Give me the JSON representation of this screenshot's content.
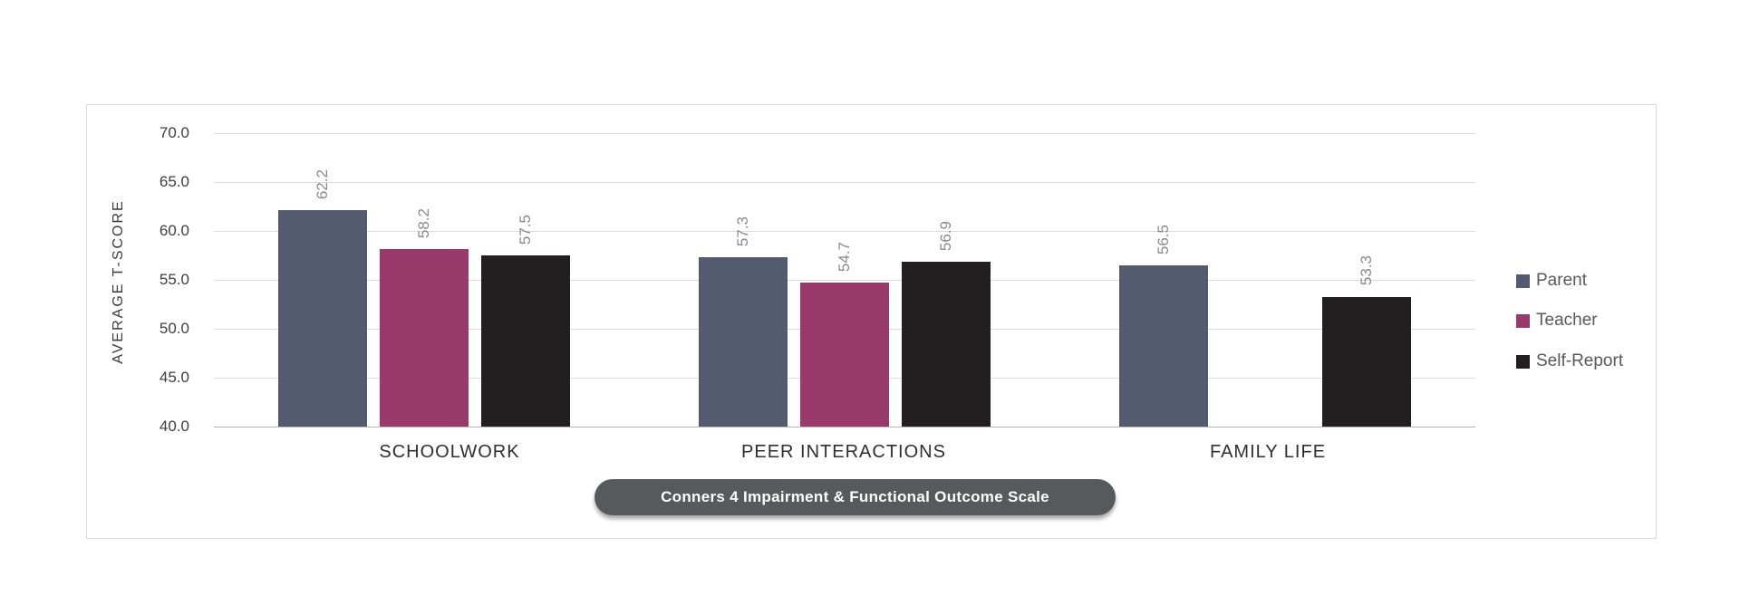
{
  "chart_data": {
    "type": "bar",
    "title": "Conners 4 Impairment & Functional Outcome Scale",
    "ylabel": "AVERAGE T-SCORE",
    "xlabel": "",
    "categories": [
      "SCHOOLWORK",
      "PEER INTERACTIONS",
      "FAMILY LIFE"
    ],
    "series": [
      {
        "name": "Parent",
        "color": "#555b6e",
        "values": [
          62.2,
          57.3,
          56.5
        ]
      },
      {
        "name": "Teacher",
        "color": "#9a3a6b",
        "values": [
          58.2,
          54.7,
          null
        ]
      },
      {
        "name": "Self-Report",
        "color": "#231f20",
        "values": [
          57.5,
          56.9,
          53.3
        ]
      }
    ],
    "ylim": [
      40.0,
      70.0
    ],
    "y_tick_labels": [
      "70.0",
      "65.0",
      "60.0",
      "55.0",
      "50.0",
      "45.0",
      "40.0"
    ],
    "grid": true,
    "legend_position": "right",
    "value_labels": "rotated-90-above-bars",
    "colors": {
      "grid": "#dcdcdc",
      "axis_line": "#b3b3b3",
      "tick_label": "#3d3d3d",
      "value_label": "#8a8a8a",
      "category_label": "#2f2f2f",
      "legend_text": "#595959",
      "y_axis_title": "#3a3a3a",
      "pill_background": "#58595b",
      "pill_text": "#ffffff",
      "chart_border": "#d9d9d9",
      "background": "#ffffff"
    }
  }
}
